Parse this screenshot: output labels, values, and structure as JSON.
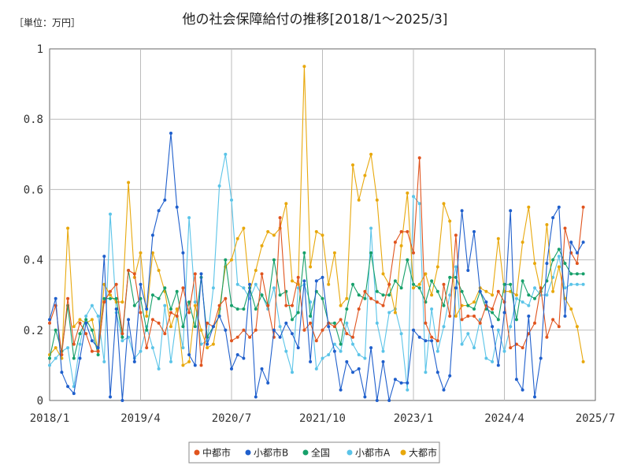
{
  "chart_data": {
    "type": "line",
    "title": "他の社会保障給付の推移[2018/1～2025/3]",
    "unit": "［単位：万円］",
    "ylim": [
      0,
      1
    ],
    "y_ticks": [
      0,
      0.2,
      0.4,
      0.6,
      0.8,
      1
    ],
    "y_tick_labels": [
      "0",
      "0.2",
      "0.4",
      "0.6",
      "0.8",
      "1"
    ],
    "x_ticks": [
      0,
      15,
      30,
      45,
      60,
      75,
      90
    ],
    "x_tick_labels": [
      "2018/1",
      "2019/4",
      "2020/7",
      "2021/10",
      "2023/1",
      "2024/4",
      "2025/7"
    ],
    "x_start": "2018/1",
    "x_end": "2025/3",
    "grid": true,
    "legend_position": "bottom",
    "series": [
      {
        "name": "中都市",
        "color": "#e0541e",
        "values": [
          0.22,
          0.27,
          0.13,
          0.29,
          0.16,
          0.22,
          0.19,
          0.14,
          0.14,
          0.28,
          0.31,
          0.33,
          0.19,
          0.37,
          0.36,
          0.25,
          0.15,
          0.23,
          0.22,
          0.19,
          0.25,
          0.24,
          0.32,
          0.25,
          0.36,
          0.1,
          0.22,
          0.21,
          0.27,
          0.29,
          0.17,
          0.18,
          0.2,
          0.18,
          0.2,
          0.36,
          0.27,
          0.18,
          0.52,
          0.27,
          0.27,
          0.35,
          0.2,
          0.22,
          0.17,
          0.2,
          0.22,
          0.21,
          0.23,
          0.19,
          0.18,
          0.26,
          0.31,
          0.29,
          0.28,
          0.27,
          0.33,
          0.45,
          0.48,
          0.48,
          0.42,
          0.69,
          0.22,
          0.18,
          0.17,
          0.33,
          0.24,
          0.47,
          0.23,
          0.24,
          0.24,
          0.22,
          0.27,
          0.26,
          0.31,
          0.28,
          0.15,
          0.16,
          0.15,
          0.19,
          0.22,
          0.32,
          0.18,
          0.23,
          0.21,
          0.49,
          0.42,
          0.39,
          0.55
        ]
      },
      {
        "name": "小都市B",
        "color": "#1f5fcc",
        "values": [
          0.23,
          0.29,
          0.08,
          0.04,
          0.02,
          0.12,
          0.22,
          0.17,
          0.15,
          0.41,
          0.01,
          0.26,
          0.0,
          0.23,
          0.11,
          0.33,
          0.26,
          0.47,
          0.54,
          0.57,
          0.76,
          0.55,
          0.42,
          0.13,
          0.1,
          0.36,
          0.16,
          0.21,
          0.24,
          0.2,
          0.09,
          0.13,
          0.12,
          0.33,
          0.01,
          0.09,
          0.05,
          0.2,
          0.18,
          0.22,
          0.19,
          0.15,
          0.34,
          0.11,
          0.34,
          0.35,
          0.21,
          0.14,
          0.03,
          0.11,
          0.08,
          0.09,
          0.01,
          0.15,
          0.0,
          0.11,
          0.0,
          0.06,
          0.05,
          0.05,
          0.2,
          0.18,
          0.17,
          0.17,
          0.08,
          0.03,
          0.07,
          0.32,
          0.54,
          0.37,
          0.48,
          0.31,
          0.28,
          0.21,
          0.1,
          0.25,
          0.54,
          0.06,
          0.03,
          0.24,
          0.01,
          0.12,
          0.39,
          0.52,
          0.55,
          0.24,
          0.45,
          0.42,
          0.45
        ]
      },
      {
        "name": "全国",
        "color": "#16a06a",
        "values": [
          0.12,
          0.2,
          0.14,
          0.27,
          0.12,
          0.19,
          0.23,
          0.2,
          0.13,
          0.29,
          0.29,
          0.29,
          0.18,
          0.37,
          0.27,
          0.29,
          0.2,
          0.3,
          0.29,
          0.32,
          0.26,
          0.31,
          0.21,
          0.28,
          0.21,
          0.35,
          0.18,
          0.21,
          0.24,
          0.4,
          0.27,
          0.26,
          0.26,
          0.32,
          0.26,
          0.3,
          0.27,
          0.4,
          0.3,
          0.31,
          0.23,
          0.25,
          0.42,
          0.24,
          0.31,
          0.29,
          0.22,
          0.22,
          0.16,
          0.26,
          0.33,
          0.3,
          0.29,
          0.42,
          0.31,
          0.3,
          0.3,
          0.34,
          0.32,
          0.4,
          0.33,
          0.32,
          0.28,
          0.34,
          0.31,
          0.27,
          0.35,
          0.35,
          0.31,
          0.27,
          0.26,
          0.31,
          0.26,
          0.25,
          0.23,
          0.33,
          0.33,
          0.23,
          0.34,
          0.3,
          0.29,
          0.31,
          0.34,
          0.4,
          0.43,
          0.39,
          0.36,
          0.36,
          0.36
        ]
      },
      {
        "name": "小都市A",
        "color": "#5bc4e8",
        "values": [
          0.1,
          0.12,
          0.14,
          0.15,
          0.04,
          0.16,
          0.24,
          0.27,
          0.24,
          0.11,
          0.53,
          0.25,
          0.17,
          0.18,
          0.12,
          0.14,
          0.21,
          0.15,
          0.09,
          0.27,
          0.11,
          0.24,
          0.15,
          0.52,
          0.28,
          0.16,
          0.17,
          0.32,
          0.61,
          0.7,
          0.57,
          0.33,
          0.32,
          0.29,
          0.33,
          0.3,
          0.26,
          0.32,
          0.21,
          0.14,
          0.08,
          0.32,
          0.33,
          0.28,
          0.09,
          0.12,
          0.13,
          0.16,
          0.14,
          0.22,
          0.16,
          0.13,
          0.12,
          0.49,
          0.22,
          0.14,
          0.25,
          0.26,
          0.19,
          0.03,
          0.58,
          0.56,
          0.08,
          0.26,
          0.14,
          0.21,
          0.3,
          0.38,
          0.16,
          0.19,
          0.15,
          0.23,
          0.12,
          0.11,
          0.2,
          0.14,
          0.21,
          0.29,
          0.28,
          0.27,
          0.32,
          0.3,
          0.3,
          0.35,
          0.41,
          0.32,
          0.33,
          0.33,
          0.33
        ]
      },
      {
        "name": "大都市",
        "color": "#e8a80c",
        "values": [
          0.13,
          0.15,
          0.12,
          0.49,
          0.21,
          0.23,
          0.22,
          0.23,
          0.14,
          0.33,
          0.3,
          0.28,
          0.28,
          0.62,
          0.35,
          0.42,
          0.24,
          0.42,
          0.37,
          0.31,
          0.21,
          0.26,
          0.1,
          0.11,
          0.27,
          0.2,
          0.15,
          0.16,
          0.26,
          0.38,
          0.4,
          0.46,
          0.49,
          0.31,
          0.37,
          0.44,
          0.48,
          0.47,
          0.49,
          0.56,
          0.34,
          0.33,
          0.95,
          0.38,
          0.48,
          0.47,
          0.33,
          0.42,
          0.27,
          0.29,
          0.67,
          0.57,
          0.64,
          0.7,
          0.57,
          0.36,
          0.33,
          0.25,
          0.44,
          0.59,
          0.32,
          0.33,
          0.36,
          0.3,
          0.38,
          0.56,
          0.51,
          0.24,
          0.27,
          0.27,
          0.28,
          0.32,
          0.31,
          0.3,
          0.46,
          0.31,
          0.31,
          0.3,
          0.45,
          0.55,
          0.39,
          0.31,
          0.5,
          0.31,
          0.38,
          0.29,
          0.26,
          0.21,
          0.11
        ]
      }
    ]
  }
}
